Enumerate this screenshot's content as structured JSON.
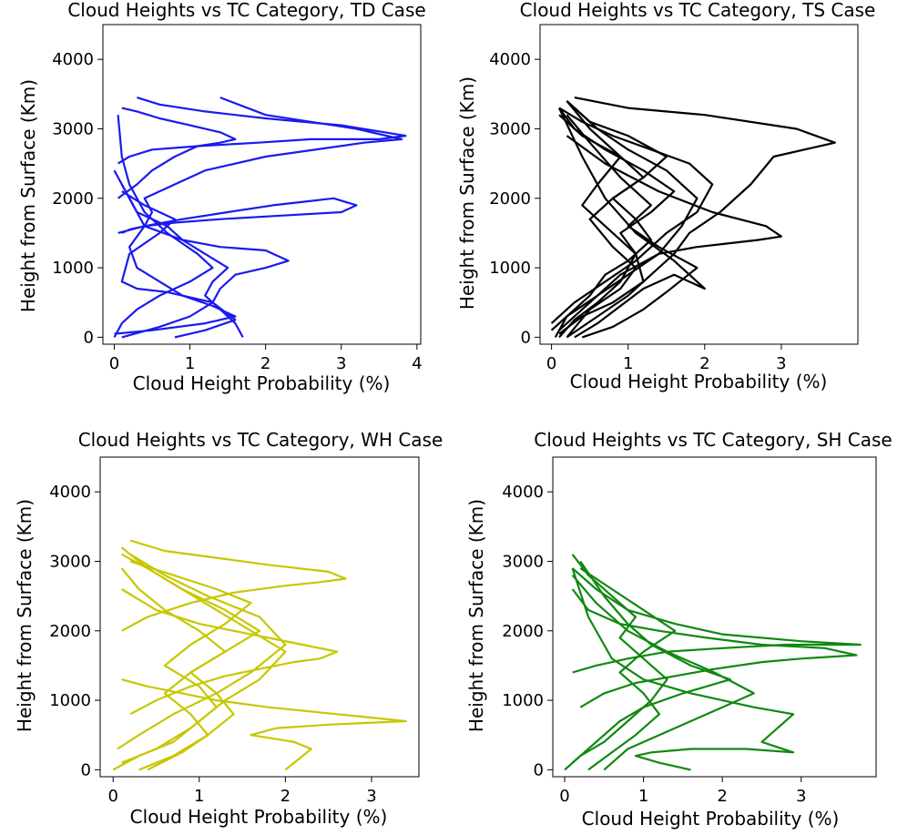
{
  "figure": {
    "panels": [
      {
        "title": "Cloud Heights vs TC Category, TD Case",
        "xlabel": "Cloud Height Probability (%)",
        "ylabel": "Height from Surface (Km)",
        "color": "#1a1aee"
      },
      {
        "title": "Cloud Heights vs TC Category, TS Case",
        "xlabel": "Cloud Height Probability (%)",
        "ylabel": "Height from Surface (Km)",
        "color": "#000000"
      },
      {
        "title": "Cloud Heights vs TC Category, WH Case",
        "xlabel": "Cloud Height Probability (%)",
        "ylabel": "Height from Surface (Km)",
        "color": "#c7c700"
      },
      {
        "title": "Cloud Heights vs TC Category, SH Case",
        "xlabel": "Cloud Height Probability (%)",
        "ylabel": "Height from Surface (Km)",
        "color": "#118811"
      }
    ]
  },
  "chart_data": [
    {
      "type": "line",
      "title": "Cloud Heights vs TC Category, TD Case",
      "xlabel": "Cloud Height Probability (%)",
      "ylabel": "Height from Surface (Km)",
      "xlim": [
        -0.15,
        4.05
      ],
      "ylim": [
        -100,
        4500
      ],
      "xticks": [
        0,
        1,
        2,
        3,
        4
      ],
      "yticks": [
        0,
        1000,
        2000,
        3000,
        4000
      ],
      "color": "#1a1aee",
      "series": [
        {
          "x": [
            1.7,
            1.6,
            1.4,
            1.2,
            1.3,
            1.5,
            1.2,
            0.9,
            0.4,
            0.5,
            0.4,
            0.8,
            1.2,
            2.0,
            3.3,
            3.8,
            3.2,
            2.0,
            1.4
          ],
          "y": [
            0,
            200,
            400,
            600,
            800,
            1000,
            1200,
            1400,
            1600,
            1800,
            2000,
            2200,
            2400,
            2600,
            2800,
            2850,
            3000,
            3200,
            3450
          ]
        },
        {
          "x": [
            0.1,
            0.6,
            1.0,
            1.3,
            1.4,
            1.6,
            2.0,
            2.3,
            2.0,
            1.4,
            0.9,
            0.7,
            0.3,
            0.2,
            0.1
          ],
          "y": [
            0,
            150,
            300,
            500,
            700,
            900,
            1000,
            1100,
            1250,
            1300,
            1400,
            1600,
            1800,
            2000,
            2200
          ]
        },
        {
          "x": [
            0.05,
            0.4,
            0.9,
            1.5,
            2.1,
            2.5,
            2.9,
            3.2,
            3.0,
            2.2,
            1.4,
            0.8,
            0.4,
            0.2,
            0.1
          ],
          "y": [
            1500,
            1600,
            1700,
            1800,
            1900,
            1950,
            2000,
            1900,
            1800,
            1750,
            1700,
            1650,
            1600,
            1550,
            1500
          ]
        },
        {
          "x": [
            0.05,
            0.2,
            0.5,
            1.1,
            1.9,
            2.6,
            3.5,
            3.85,
            3.0,
            2.0,
            1.2,
            0.6,
            0.3
          ],
          "y": [
            2500,
            2600,
            2700,
            2750,
            2800,
            2850,
            2850,
            2900,
            3050,
            3150,
            3250,
            3350,
            3450
          ]
        },
        {
          "x": [
            0.0,
            0.1,
            0.3,
            0.6,
            1.0,
            1.3,
            1.1,
            0.7,
            0.4,
            0.2,
            0.1,
            0.05
          ],
          "y": [
            0,
            200,
            400,
            600,
            800,
            1000,
            1200,
            1500,
            1800,
            2200,
            2600,
            3200
          ]
        },
        {
          "x": [
            0.0,
            0.5,
            1.2,
            1.6,
            1.3,
            0.9,
            0.6,
            0.3,
            0.2,
            0.4,
            0.2,
            0.0
          ],
          "y": [
            50,
            100,
            200,
            300,
            450,
            600,
            800,
            1000,
            1300,
            1600,
            2000,
            2400
          ]
        },
        {
          "x": [
            0.05,
            0.3,
            0.5,
            0.8,
            1.1,
            1.4,
            1.6,
            1.4,
            1.0,
            0.6,
            0.3,
            0.1
          ],
          "y": [
            2000,
            2200,
            2400,
            2600,
            2750,
            2800,
            2850,
            2950,
            3050,
            3150,
            3250,
            3300
          ]
        },
        {
          "x": [
            0.8,
            1.2,
            1.6,
            1.3,
            0.7,
            0.3,
            0.1,
            0.2,
            0.6,
            0.8,
            0.4,
            0.1
          ],
          "y": [
            0,
            100,
            250,
            500,
            650,
            700,
            800,
            1200,
            1500,
            1700,
            1900,
            2100
          ]
        }
      ]
    },
    {
      "type": "line",
      "title": "Cloud Heights vs TC Category, TS Case",
      "xlabel": "Cloud Height Probability (%)",
      "ylabel": "Height from Surface (Km)",
      "xlim": [
        -0.15,
        4.0
      ],
      "ylim": [
        -100,
        4500
      ],
      "xticks": [
        0,
        1,
        2,
        3
      ],
      "yticks": [
        0,
        1000,
        2000,
        3000,
        4000
      ],
      "color": "#000000",
      "series": [
        {
          "x": [
            0.2,
            0.6,
            1.0,
            1.3,
            1.6,
            1.8,
            2.2,
            2.6,
            2.9,
            3.7,
            3.2,
            2.0,
            1.0,
            0.3
          ],
          "y": [
            0,
            300,
            600,
            900,
            1200,
            1500,
            1800,
            2200,
            2600,
            2800,
            3000,
            3200,
            3300,
            3450
          ]
        },
        {
          "x": [
            0.1,
            0.5,
            0.9,
            1.4,
            1.9,
            2.3,
            2.7,
            3.0,
            2.8,
            2.1,
            1.4,
            0.7,
            0.2
          ],
          "y": [
            100,
            500,
            900,
            1200,
            1300,
            1350,
            1400,
            1450,
            1600,
            1800,
            2100,
            2500,
            2900
          ]
        },
        {
          "x": [
            0.0,
            0.3,
            0.7,
            1.1,
            1.5,
            1.9,
            2.1,
            1.8,
            1.3,
            0.8,
            0.4,
            0.1
          ],
          "y": [
            200,
            500,
            800,
            1100,
            1500,
            1800,
            2200,
            2500,
            2700,
            2900,
            3100,
            3300
          ]
        },
        {
          "x": [
            0.05,
            0.2,
            0.6,
            1.0,
            1.4,
            1.7,
            1.9,
            1.5,
            1.0,
            0.6,
            0.2
          ],
          "y": [
            0,
            300,
            600,
            900,
            1200,
            1600,
            2000,
            2400,
            2700,
            3000,
            3400
          ]
        },
        {
          "x": [
            0.3,
            0.6,
            0.9,
            1.2,
            1.6,
            2.0,
            1.6,
            1.1,
            0.7,
            0.4,
            0.1
          ],
          "y": [
            0,
            200,
            450,
            700,
            900,
            700,
            1100,
            1500,
            2000,
            2600,
            3300
          ]
        },
        {
          "x": [
            0.1,
            0.4,
            0.8,
            1.2,
            1.1,
            0.9,
            1.3,
            1.6,
            1.2,
            0.7,
            0.3,
            0.1
          ],
          "y": [
            50,
            300,
            500,
            800,
            1200,
            1500,
            1800,
            2100,
            2400,
            2700,
            3000,
            3300
          ]
        },
        {
          "x": [
            0.2,
            0.5,
            0.9,
            1.1,
            0.8,
            0.5,
            0.8,
            1.2,
            1.5,
            1.0,
            0.5,
            0.2
          ],
          "y": [
            0,
            400,
            700,
            1000,
            1300,
            1700,
            2000,
            2300,
            2600,
            2900,
            3100,
            3400
          ]
        },
        {
          "x": [
            0.0,
            0.2,
            0.5,
            0.7,
            1.0,
            1.3,
            1.1,
            0.8,
            1.2,
            0.9,
            0.4,
            0.1
          ],
          "y": [
            100,
            300,
            600,
            900,
            1100,
            1400,
            1700,
            2000,
            2300,
            2600,
            2900,
            3200
          ]
        },
        {
          "x": [
            0.1,
            0.3,
            0.6,
            0.9,
            1.1,
            0.7,
            0.4,
            0.6,
            0.9,
            0.5,
            0.2
          ],
          "y": [
            0,
            250,
            500,
            800,
            1200,
            1600,
            1900,
            2200,
            2600,
            3000,
            3400
          ]
        },
        {
          "x": [
            0.4,
            0.8,
            1.2,
            1.5,
            1.9,
            1.4,
            1.0,
            1.3,
            0.9,
            0.5,
            0.2
          ],
          "y": [
            0,
            150,
            400,
            650,
            1000,
            1300,
            1600,
            1900,
            2300,
            2800,
            3200
          ]
        }
      ]
    },
    {
      "type": "line",
      "title": "Cloud Heights vs TC Category, WH Case",
      "xlabel": "Cloud Height Probability (%)",
      "ylabel": "Height from Surface (Km)",
      "xlim": [
        -0.15,
        3.55
      ],
      "ylim": [
        -100,
        4500
      ],
      "xticks": [
        0,
        1,
        2,
        3
      ],
      "yticks": [
        0,
        1000,
        2000,
        3000,
        4000
      ],
      "color": "#c7c700",
      "series": [
        {
          "x": [
            2.0,
            2.3,
            2.1,
            1.6,
            1.9,
            2.5,
            3.4,
            2.6,
            1.8,
            1.2,
            0.8,
            0.4,
            0.1
          ],
          "y": [
            0,
            300,
            400,
            500,
            600,
            650,
            700,
            800,
            900,
            1000,
            1100,
            1200,
            1300
          ]
        },
        {
          "x": [
            0.1,
            0.4,
            0.9,
            1.4,
            2.0,
            2.4,
            2.7,
            2.5,
            1.8,
            1.2,
            0.6,
            0.2
          ],
          "y": [
            2000,
            2200,
            2400,
            2550,
            2650,
            2700,
            2750,
            2850,
            2950,
            3050,
            3150,
            3300
          ]
        },
        {
          "x": [
            0.2,
            0.5,
            0.9,
            1.3,
            1.7,
            2.1,
            2.4,
            2.6,
            2.2,
            1.6,
            1.0,
            0.5,
            0.1
          ],
          "y": [
            800,
            1000,
            1200,
            1350,
            1450,
            1550,
            1600,
            1700,
            1800,
            1950,
            2100,
            2300,
            2600
          ]
        },
        {
          "x": [
            0.0,
            0.3,
            0.7,
            1.0,
            1.3,
            1.7,
            2.0,
            1.6,
            1.2,
            0.8,
            0.4,
            0.1
          ],
          "y": [
            0,
            200,
            400,
            700,
            1000,
            1300,
            1700,
            2000,
            2300,
            2600,
            2900,
            3200
          ]
        },
        {
          "x": [
            0.3,
            0.7,
            1.1,
            1.4,
            1.2,
            0.9,
            1.3,
            1.7,
            1.3,
            0.8,
            0.4,
            0.1
          ],
          "y": [
            0,
            200,
            500,
            800,
            1100,
            1400,
            1700,
            2000,
            2300,
            2600,
            2900,
            3100
          ]
        },
        {
          "x": [
            0.1,
            0.5,
            0.9,
            1.2,
            1.0,
            0.6,
            0.9,
            1.3,
            1.6,
            1.2,
            0.7,
            0.2
          ],
          "y": [
            100,
            300,
            600,
            900,
            1200,
            1500,
            1800,
            2100,
            2400,
            2600,
            2800,
            3000
          ]
        },
        {
          "x": [
            0.4,
            0.8,
            1.1,
            0.9,
            0.6,
            0.9,
            1.3,
            1.0,
            0.6,
            0.3,
            0.1
          ],
          "y": [
            0,
            250,
            500,
            800,
            1100,
            1400,
            1700,
            2000,
            2300,
            2600,
            2900
          ]
        },
        {
          "x": [
            0.05,
            0.3,
            0.7,
            1.2,
            1.6,
            2.0,
            1.7,
            1.1,
            0.6,
            0.2
          ],
          "y": [
            300,
            500,
            800,
            1100,
            1400,
            1800,
            2200,
            2500,
            2800,
            3100
          ]
        }
      ]
    },
    {
      "type": "line",
      "title": "Cloud Heights vs TC Category, SH Case",
      "xlabel": "Cloud Height Probability (%)",
      "ylabel": "Height from Surface (Km)",
      "xlim": [
        -0.15,
        3.95
      ],
      "ylim": [
        -100,
        4500
      ],
      "xticks": [
        0,
        1,
        2,
        3
      ],
      "yticks": [
        0,
        1000,
        2000,
        3000,
        4000
      ],
      "color": "#118811",
      "series": [
        {
          "x": [
            1.6,
            1.2,
            0.9,
            1.1,
            1.6,
            2.3,
            2.9,
            2.5,
            2.9,
            2.4,
            1.6,
            1.0,
            0.6,
            0.3,
            0.1
          ],
          "y": [
            0,
            100,
            200,
            250,
            300,
            300,
            250,
            400,
            800,
            900,
            1100,
            1300,
            1600,
            2200,
            2900
          ]
        },
        {
          "x": [
            0.2,
            0.5,
            0.9,
            1.4,
            1.9,
            2.5,
            3.0,
            3.7,
            3.3,
            2.5,
            1.8,
            1.2,
            0.7,
            0.3,
            0.1
          ],
          "y": [
            900,
            1100,
            1250,
            1350,
            1450,
            1550,
            1600,
            1650,
            1750,
            1800,
            1900,
            2000,
            2100,
            2300,
            2600
          ]
        },
        {
          "x": [
            0.1,
            0.4,
            0.8,
            1.3,
            2.0,
            2.8,
            3.75,
            3.0,
            2.0,
            1.4,
            0.8,
            0.4,
            0.1
          ],
          "y": [
            1400,
            1500,
            1600,
            1700,
            1750,
            1800,
            1800,
            1850,
            1950,
            2100,
            2300,
            2600,
            2900
          ]
        },
        {
          "x": [
            0.0,
            0.2,
            0.5,
            0.8,
            1.1,
            1.3,
            1.0,
            0.7,
            0.9,
            0.6,
            0.3,
            0.1
          ],
          "y": [
            0,
            200,
            400,
            700,
            1000,
            1300,
            1600,
            1900,
            2200,
            2500,
            2800,
            3100
          ]
        },
        {
          "x": [
            0.3,
            0.6,
            0.9,
            1.2,
            1.0,
            0.7,
            1.0,
            1.4,
            1.0,
            0.6,
            0.2
          ],
          "y": [
            0,
            250,
            500,
            800,
            1100,
            1400,
            1700,
            2000,
            2300,
            2600,
            2900
          ]
        },
        {
          "x": [
            0.1,
            0.4,
            0.7,
            1.0,
            1.5,
            2.1,
            1.6,
            1.1,
            0.8,
            0.5,
            0.2
          ],
          "y": [
            100,
            400,
            700,
            900,
            1100,
            1300,
            1500,
            1800,
            2100,
            2500,
            3000
          ]
        },
        {
          "x": [
            0.5,
            0.8,
            1.2,
            1.6,
            2.0,
            2.4,
            1.9,
            1.3,
            0.8,
            0.4,
            0.1
          ],
          "y": [
            0,
            300,
            500,
            700,
            900,
            1100,
            1400,
            1700,
            2000,
            2400,
            2800
          ]
        }
      ]
    }
  ]
}
